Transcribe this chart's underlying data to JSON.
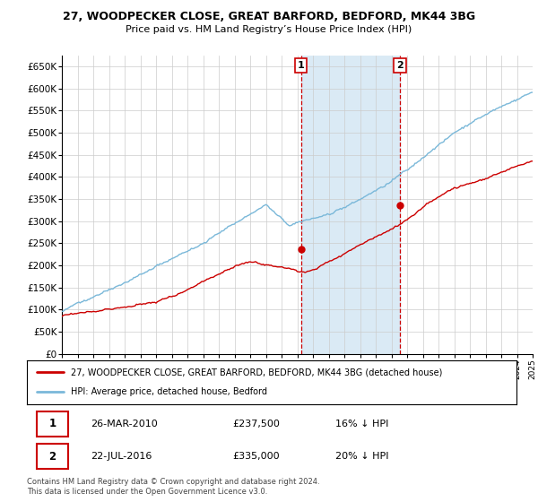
{
  "title_line1": "27, WOODPECKER CLOSE, GREAT BARFORD, BEDFORD, MK44 3BG",
  "title_line2": "Price paid vs. HM Land Registry’s House Price Index (HPI)",
  "ylim": [
    0,
    675000
  ],
  "yticks": [
    0,
    50000,
    100000,
    150000,
    200000,
    250000,
    300000,
    350000,
    400000,
    450000,
    500000,
    550000,
    600000,
    650000
  ],
  "ytick_labels": [
    "£0",
    "£50K",
    "£100K",
    "£150K",
    "£200K",
    "£250K",
    "£300K",
    "£350K",
    "£400K",
    "£450K",
    "£500K",
    "£550K",
    "£600K",
    "£650K"
  ],
  "hpi_color": "#7ab8d9",
  "price_color": "#cc0000",
  "sale1_year": 2010.23,
  "sale1_price": 237500,
  "sale2_year": 2016.55,
  "sale2_price": 335000,
  "vline_color": "#cc0000",
  "shade_color": "#daeaf5",
  "legend_label1": "27, WOODPECKER CLOSE, GREAT BARFORD, BEDFORD, MK44 3BG (detached house)",
  "legend_label2": "HPI: Average price, detached house, Bedford",
  "table_row1": [
    "1",
    "26-MAR-2010",
    "£237,500",
    "16% ↓ HPI"
  ],
  "table_row2": [
    "2",
    "22-JUL-2016",
    "£335,000",
    "20% ↓ HPI"
  ],
  "footer": "Contains HM Land Registry data © Crown copyright and database right 2024.\nThis data is licensed under the Open Government Licence v3.0.",
  "grid_color": "#cccccc"
}
